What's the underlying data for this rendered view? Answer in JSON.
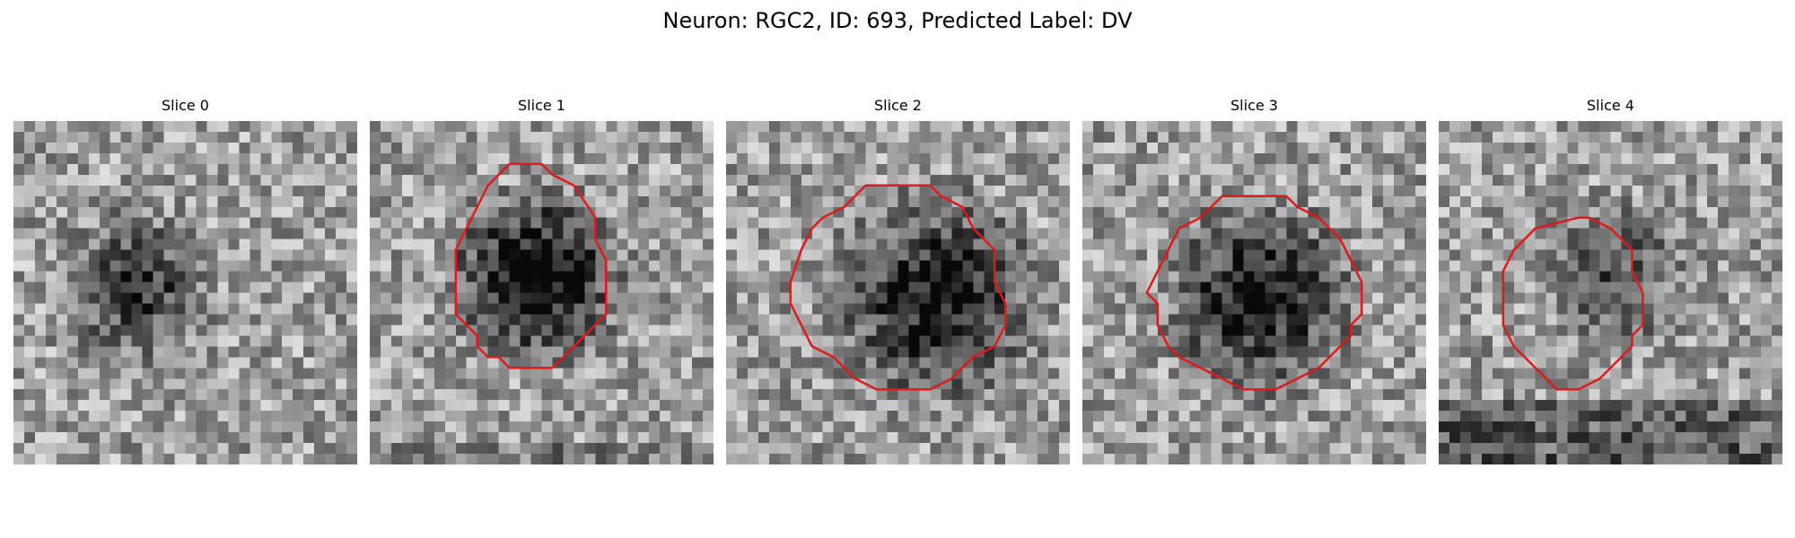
{
  "figure": {
    "title": "Neuron: RGC2, ID: 693, Predicted Label: DV"
  },
  "panels": [
    {
      "title": "Slice 0",
      "has_contour": false
    },
    {
      "title": "Slice 1",
      "has_contour": true
    },
    {
      "title": "Slice 2",
      "has_contour": true
    },
    {
      "title": "Slice 3",
      "has_contour": true
    },
    {
      "title": "Slice 4",
      "has_contour": true
    }
  ],
  "colors": {
    "contour": "#e0191c",
    "background": "#ffffff"
  },
  "colormap": "gray"
}
